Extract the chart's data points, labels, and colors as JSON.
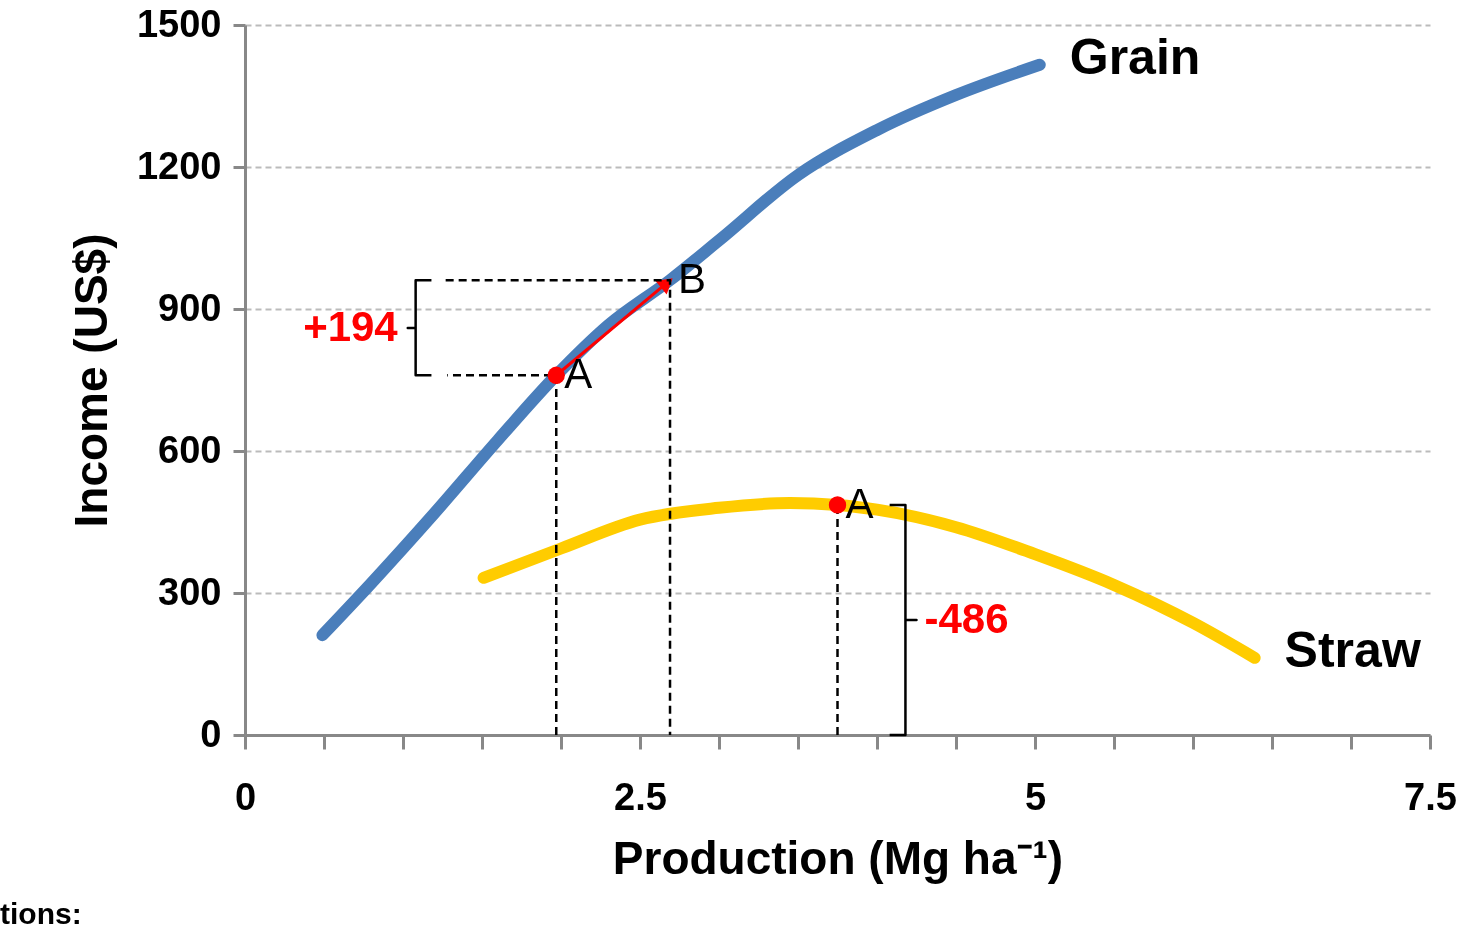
{
  "chart_data": {
    "type": "line",
    "xlabel": "Production (Mg ha⁻¹)",
    "ylabel": "Income (US$)",
    "xlim": [
      0,
      7.5
    ],
    "ylim": [
      0,
      1500
    ],
    "xticks": [
      0,
      {
        "value": 0.5,
        "label": null
      },
      {
        "value": 1,
        "label": null
      },
      {
        "value": 1.5,
        "label": null
      },
      {
        "value": 2,
        "label": null
      },
      2.5,
      {
        "value": 3,
        "label": null
      },
      {
        "value": 3.5,
        "label": null
      },
      {
        "value": 4,
        "label": null
      },
      {
        "value": 4.5,
        "label": null
      },
      5,
      {
        "value": 5.5,
        "label": null
      },
      {
        "value": 6,
        "label": null
      },
      {
        "value": 6.5,
        "label": null
      },
      {
        "value": 7,
        "label": null
      },
      7.5
    ],
    "yticks": [
      0,
      300,
      600,
      900,
      1200,
      1500
    ],
    "grid": "y",
    "legend": false,
    "line_style": "solid",
    "series": [
      {
        "name": "Grain",
        "color": "#4a7ebb",
        "x": [
          0.49,
          0.8,
          1.2,
          1.6,
          1.97,
          2.3,
          2.69,
          3.0,
          3.5,
          4.0,
          4.5,
          5.03
        ],
        "values": [
          211,
          321,
          469,
          623,
          760,
          866,
          961,
          1045,
          1183,
          1278,
          1352,
          1416
        ]
      },
      {
        "name": "Straw",
        "color": "#ffcc00",
        "x": [
          1.51,
          2.0,
          2.5,
          3.0,
          3.45,
          3.75,
          4.0,
          4.5,
          5.0,
          5.5,
          6.0,
          6.39
        ],
        "values": [
          332,
          394,
          455,
          480,
          490,
          486,
          476,
          439,
          382,
          317,
          237,
          163
        ]
      },
      {
        "color": "#000000",
        "line_style": "dashed",
        "x": [
          1.97,
          1.97,
          1.28
        ],
        "values": [
          0,
          760,
          760
        ]
      },
      {
        "color": "#000000",
        "line_style": "dashed",
        "x": [
          1.27,
          2.69,
          2.69
        ],
        "values": [
          961,
          961,
          0
        ]
      },
      {
        "color": "#000000",
        "line_style": "dashed",
        "x": [
          3.75,
          3.75
        ],
        "values": [
          0,
          486
        ]
      },
      {
        "color": "#000000",
        "x": [
          1.18,
          1.08,
          1.08,
          1.03,
          1.08,
          1.08,
          1.18
        ],
        "values": [
          961,
          961,
          860,
          860,
          860,
          760,
          760
        ]
      },
      {
        "color": "#000000",
        "x": [
          4.08,
          4.18,
          4.18,
          4.25,
          4.18,
          4.18,
          4.08
        ],
        "values": [
          486,
          486,
          243,
          243,
          243,
          0,
          0
        ]
      },
      {
        "color": "#ff0000",
        "marker": "triangle",
        "x": [
          1.97,
          2.67
        ],
        "values": [
          760,
          955
        ]
      },
      {
        "type": "scatter",
        "color": "#ff0000",
        "marker": "circle",
        "x": [
          1.97,
          3.75
        ],
        "values": [
          760,
          486
        ]
      }
    ],
    "annotations": [
      {
        "text": "+194",
        "x": 1.03,
        "y": 860
      },
      {
        "text": "-486",
        "x": 4.25,
        "y": 243
      },
      {
        "text": "A",
        "x": 1.97,
        "y": 760
      },
      {
        "text": "B",
        "x": 2.69,
        "y": 961
      },
      {
        "text": "A",
        "x": 3.75,
        "y": 486
      },
      "tions:"
    ]
  }
}
